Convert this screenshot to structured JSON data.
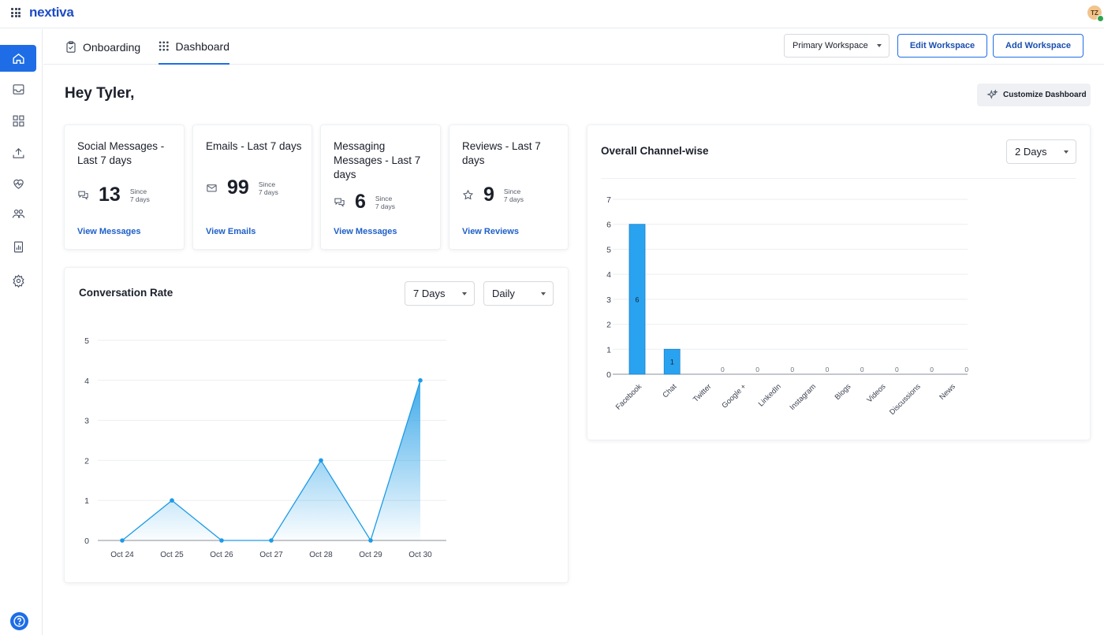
{
  "app": {
    "logo_text": "nextiva",
    "user_initials": "TZ"
  },
  "header": {
    "tabs": [
      {
        "label": "Onboarding"
      },
      {
        "label": "Dashboard"
      }
    ],
    "workspace_select": "Primary Workspace",
    "edit_workspace": "Edit Workspace",
    "add_workspace": "Add Workspace"
  },
  "sidebar": {
    "items": [
      "home-icon",
      "inbox-icon",
      "apps-grid-icon",
      "publish-icon",
      "heart-pulse-icon",
      "team-icon",
      "report-icon",
      "settings-icon"
    ],
    "help": "help-icon"
  },
  "greeting": "Hey Tyler,",
  "customize_dashboard": "Customize Dashboard",
  "stats": [
    {
      "title": "Social Messages - Last 7 days",
      "value": "13",
      "since": "Since 7 days",
      "link": "View Messages",
      "icon": "chat-bubbles-icon"
    },
    {
      "title": "Emails - Last 7 days",
      "value": "99",
      "since": "Since 7 days",
      "link": "View Emails",
      "icon": "mail-icon"
    },
    {
      "title": "Messaging Messages - Last 7 days",
      "value": "6",
      "since": "Since 7 days",
      "link": "View Messages",
      "icon": "chat-bubbles-icon"
    },
    {
      "title": "Reviews - Last 7 days",
      "value": "9",
      "since": "Since 7 days",
      "link": "View Reviews",
      "icon": "star-icon"
    }
  ],
  "conversation": {
    "title": "Conversation Rate",
    "range": "7 Days",
    "granularity": "Daily"
  },
  "channel": {
    "title": "Overall Channel-wise",
    "range": "2 Days"
  },
  "colors": {
    "accent": "#1e6de6",
    "bar": "#29a3f0",
    "line": "#1d9be6"
  },
  "chart_data": [
    {
      "type": "area",
      "title": "Conversation Rate",
      "categories": [
        "Oct 24",
        "Oct 25",
        "Oct 26",
        "Oct 27",
        "Oct 28",
        "Oct 29",
        "Oct 30"
      ],
      "values": [
        0,
        1,
        0,
        0,
        2,
        0,
        4
      ],
      "ylim": [
        0,
        5
      ],
      "yticks": [
        0,
        1,
        2,
        3,
        4,
        5
      ],
      "grid": true
    },
    {
      "type": "bar",
      "title": "Overall Channel-wise",
      "categories": [
        "Facebook",
        "Chat",
        "Twitter",
        "Google +",
        "LinkedIn",
        "Instagram",
        "Blogs",
        "Videos",
        "Discussions",
        "News"
      ],
      "values": [
        6,
        1,
        0,
        0,
        0,
        0,
        0,
        0,
        0,
        0
      ],
      "ylim": [
        0,
        7
      ],
      "yticks": [
        0,
        1,
        2,
        3,
        4,
        5,
        6,
        7
      ],
      "grid": true
    }
  ]
}
